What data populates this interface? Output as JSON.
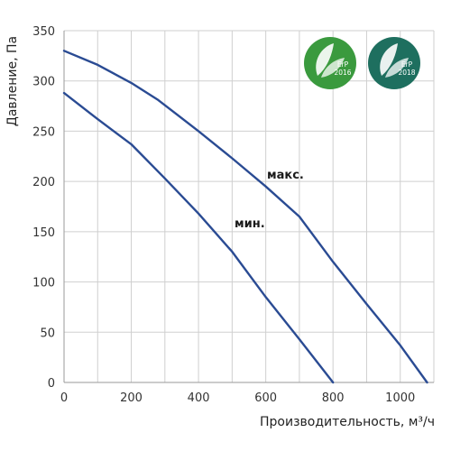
{
  "chart_data": {
    "type": "line",
    "xlabel": "Производительность, м³/ч",
    "ylabel": "Давление, Па",
    "xlim": [
      0,
      1100
    ],
    "ylim": [
      0,
      350
    ],
    "x_ticks": [
      0,
      200,
      400,
      600,
      800,
      1000
    ],
    "y_ticks": [
      0,
      50,
      100,
      150,
      200,
      250,
      300,
      350
    ],
    "grid": true,
    "series": [
      {
        "name": "макс.",
        "color": "#2a4b93",
        "points": [
          [
            0,
            330
          ],
          [
            100,
            316
          ],
          [
            200,
            298
          ],
          [
            280,
            281
          ],
          [
            400,
            250
          ],
          [
            500,
            223
          ],
          [
            600,
            195
          ],
          [
            700,
            165
          ],
          [
            800,
            120
          ],
          [
            900,
            78
          ],
          [
            1000,
            37
          ],
          [
            1080,
            0
          ]
        ]
      },
      {
        "name": "мин.",
        "color": "#2a4b93",
        "points": [
          [
            0,
            288
          ],
          [
            100,
            262
          ],
          [
            200,
            237
          ],
          [
            300,
            203
          ],
          [
            400,
            168
          ],
          [
            500,
            130
          ],
          [
            600,
            85
          ],
          [
            700,
            43
          ],
          [
            800,
            0
          ]
        ]
      }
    ],
    "annotations": [
      "макс.",
      "мин."
    ]
  },
  "badges": [
    {
      "title": "ErP",
      "year": "2016",
      "color": "#3a9a3e"
    },
    {
      "title": "ErP",
      "year": "2018",
      "color": "#1e6f5f"
    }
  ]
}
